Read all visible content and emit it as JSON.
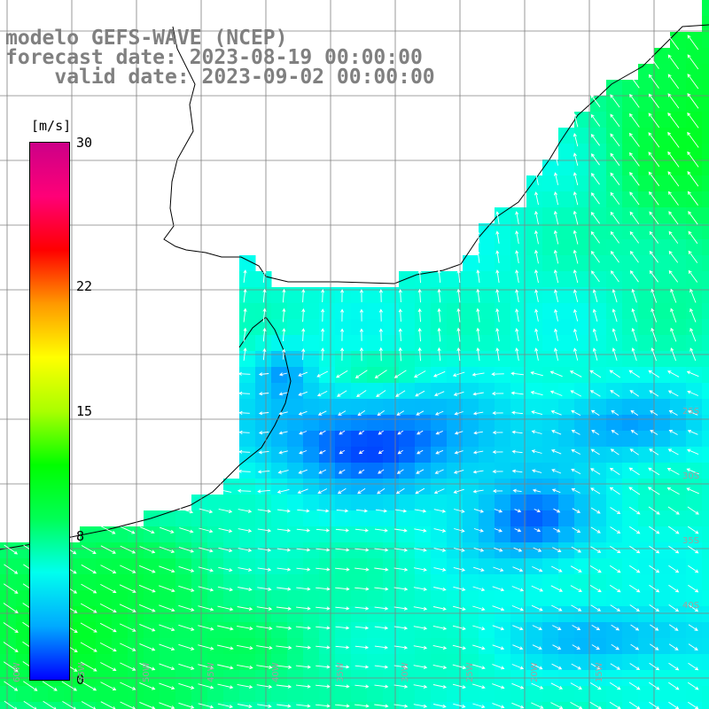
{
  "title": {
    "line1": "modelo GEFS-WAVE (NCEP)",
    "line2": "forecast date: 2023-08-19 00:00:00",
    "line3": "    valid date: 2023-09-02 00:00:00"
  },
  "colorbar": {
    "unit": "[m/s]",
    "min": 0,
    "max": 30,
    "ticks": [
      {
        "value": 30,
        "label": "30"
      },
      {
        "value": 22,
        "label": "22"
      },
      {
        "value": 15,
        "label": "15"
      },
      {
        "value": 8,
        "label": "8"
      },
      {
        "value": 0,
        "label": "0"
      }
    ],
    "colors": [
      "#0000ff",
      "#00aaff",
      "#00ffee",
      "#00ff55",
      "#00ff00",
      "#aaff00",
      "#ffff00",
      "#ff9900",
      "#ff0000",
      "#ff0077",
      "#cc0088"
    ]
  },
  "map": {
    "land_color": "#ffffff",
    "coast_color": "#000000",
    "grid_color": "#808080",
    "arrow_color": "#ffffff",
    "lon_labels": [
      "60W",
      "55W",
      "50W",
      "45W",
      "40W",
      "35W",
      "30W",
      "25W",
      "20W",
      "15W"
    ],
    "lat_labels": [
      "25S",
      "30S",
      "35S",
      "40S"
    ]
  }
}
